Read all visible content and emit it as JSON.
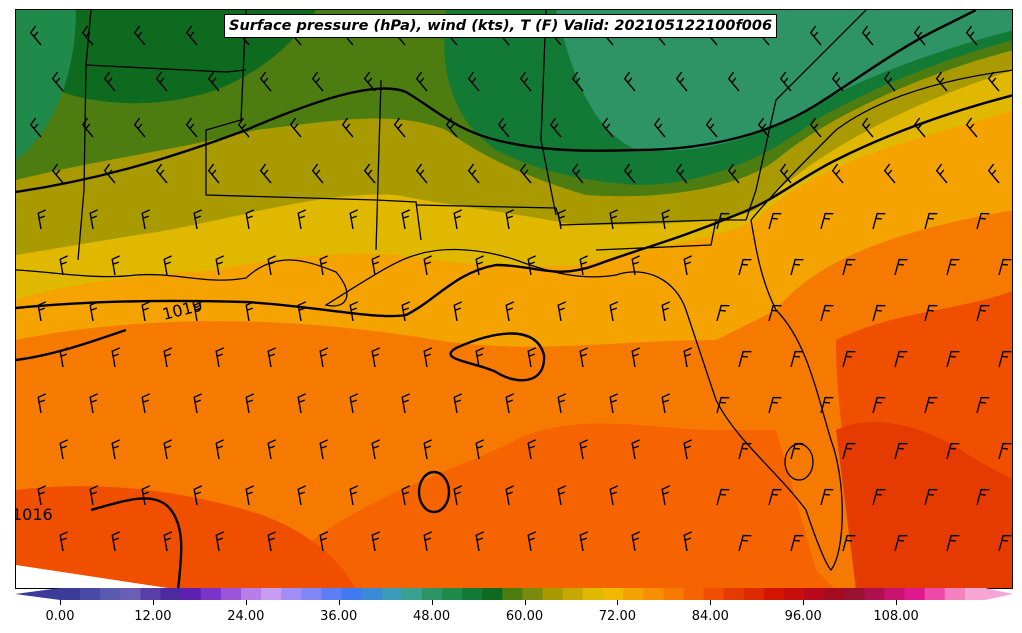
{
  "title": "Surface pressure (hPa), wind (kts), T (F) Valid: 202105122100f006",
  "isobar_labels": [
    "1019",
    "1016"
  ],
  "colorbar": {
    "ticks": [
      "0.00",
      "12.00",
      "24.00",
      "36.00",
      "48.00",
      "60.00",
      "72.00",
      "84.00",
      "96.00",
      "108.00"
    ],
    "colors": [
      "#3b3b9a",
      "#4a4aa8",
      "#5a5ab0",
      "#6a5fb5",
      "#5b3fa8",
      "#4e2aa0",
      "#5f1fb0",
      "#7a35c8",
      "#9a55d8",
      "#b87de8",
      "#c79cf0",
      "#a08df5",
      "#7f86f5",
      "#5c7ef5",
      "#3f78f0",
      "#3a8ad8",
      "#3a9ab8",
      "#3aa090",
      "#2e9466",
      "#1f8a4a",
      "#137a35",
      "#0d6a1e",
      "#4d7d10",
      "#7a8a0a",
      "#a89a00",
      "#c8a800",
      "#e0b800",
      "#f0b800",
      "#f5a300",
      "#f78f00",
      "#f77a00",
      "#f56400",
      "#f04f00",
      "#e63b00",
      "#dd2a00",
      "#d41600",
      "#c80d0d",
      "#b80a1a",
      "#a20c20",
      "#9a1030",
      "#b01050",
      "#c81470",
      "#e01890",
      "#f04aa8",
      "#f580c0",
      "#f7a5d5"
    ]
  }
}
